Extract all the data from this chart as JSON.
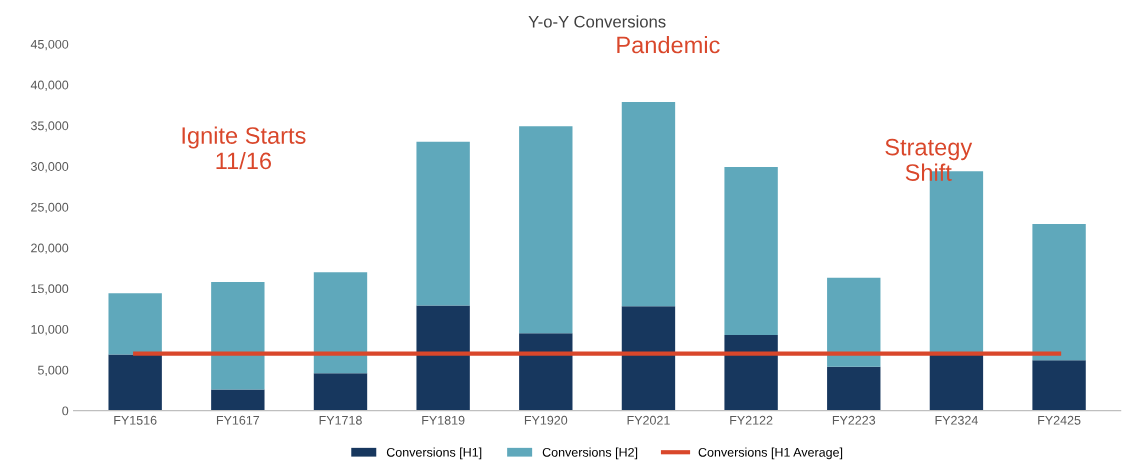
{
  "chart_data": {
    "type": "bar",
    "title": "Y-o-Y Conversions",
    "stacked": true,
    "categories": [
      "FY1516",
      "FY1617",
      "FY1718",
      "FY1819",
      "FY1920",
      "FY2021",
      "FY2122",
      "FY2223",
      "FY2324",
      "FY2425"
    ],
    "series": [
      {
        "name": "Conversions [H1]",
        "color": "#17375e",
        "values": [
          6900,
          2600,
          4600,
          12900,
          9500,
          12800,
          9300,
          5400,
          7000,
          6200
        ]
      },
      {
        "name": "Conversions [H2]",
        "color": "#5fa8bb",
        "values": [
          7500,
          13200,
          12400,
          20100,
          25400,
          25100,
          20600,
          10900,
          22400,
          16700
        ]
      },
      {
        "name": "Conversions [H1 Average]",
        "type": "line",
        "color": "#d9472b",
        "values": [
          7000,
          7000,
          7000,
          7000,
          7000,
          7000,
          7000,
          7000,
          7000,
          7000
        ]
      }
    ],
    "ylim": [
      0,
      45000
    ],
    "yticks": [
      {
        "value": 0,
        "label": "0"
      },
      {
        "value": 5000,
        "label": "5,000"
      },
      {
        "value": 10000,
        "label": "10,000"
      },
      {
        "value": 15000,
        "label": "15,000"
      },
      {
        "value": 20000,
        "label": "20,000"
      },
      {
        "value": 25000,
        "label": "25,000"
      },
      {
        "value": 30000,
        "label": "30,000"
      },
      {
        "value": 35000,
        "label": "35,000"
      },
      {
        "value": 40000,
        "label": "40,000"
      },
      {
        "value": 45000,
        "label": "45,000"
      }
    ],
    "annotations": [
      "Ignite Starts\n11/16",
      "Pandemic",
      "Strategy\nShift"
    ],
    "grid": false,
    "legend": "bottom"
  }
}
